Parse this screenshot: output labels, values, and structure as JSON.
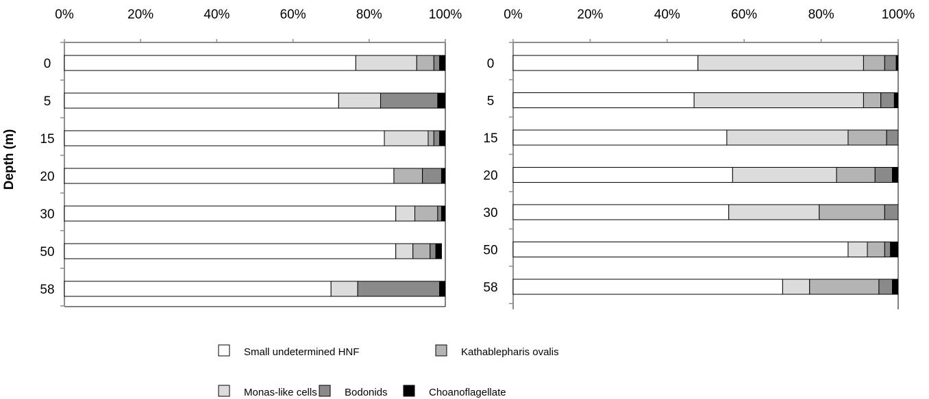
{
  "legend": [
    {
      "name": "Small undetermined HNF",
      "color": "#ffffff"
    },
    {
      "name": "Kathablepharis ovalis",
      "color": "#b4b4b4"
    },
    {
      "name": "Monas-like cells",
      "color": "#dcdcdc"
    },
    {
      "name": "Bodonids",
      "color": "#8a8a8a"
    },
    {
      "name": "Choanoflagellate",
      "color": "#000000"
    }
  ],
  "chart_data": [
    {
      "type": "bar",
      "orientation": "horizontal",
      "stacked": "percent",
      "ylabel": "Depth (m)",
      "xlim": [
        0,
        100
      ],
      "xticks": [
        "0%",
        "20%",
        "40%",
        "60%",
        "80%",
        "100%"
      ],
      "categories": [
        "0",
        "5",
        "15",
        "20",
        "30",
        "50",
        "58"
      ],
      "series": [
        {
          "name": "Small undetermined HNF",
          "color": "#ffffff",
          "values": [
            76.5,
            72,
            84,
            86.5,
            87,
            87,
            70
          ]
        },
        {
          "name": "Monas-like cells",
          "color": "#dcdcdc",
          "values": [
            16,
            11,
            11.5,
            0,
            5,
            4.5,
            7
          ]
        },
        {
          "name": "Kathablepharis ovalis",
          "color": "#b4b4b4",
          "values": [
            4.5,
            0,
            1.5,
            7.5,
            6,
            4.5,
            0
          ]
        },
        {
          "name": "Bodonids",
          "color": "#8a8a8a",
          "values": [
            1.5,
            15,
            1.5,
            5,
            1,
            1.5,
            21.5
          ]
        },
        {
          "name": "Choanoflagellate",
          "color": "#000000",
          "values": [
            1.5,
            2,
            1.5,
            1,
            1,
            1.5,
            1.5
          ]
        }
      ]
    },
    {
      "type": "bar",
      "orientation": "horizontal",
      "stacked": "percent",
      "xlim": [
        0,
        100
      ],
      "xticks": [
        "0%",
        "20%",
        "40%",
        "60%",
        "80%",
        "100%"
      ],
      "categories": [
        "0",
        "5",
        "15",
        "20",
        "30",
        "50",
        "58"
      ],
      "series": [
        {
          "name": "Small undetermined HNF",
          "color": "#ffffff",
          "values": [
            48,
            47,
            55.5,
            57,
            56,
            87,
            70
          ]
        },
        {
          "name": "Monas-like cells",
          "color": "#dcdcdc",
          "values": [
            43,
            44,
            31.5,
            27,
            23.5,
            5,
            7
          ]
        },
        {
          "name": "Kathablepharis ovalis",
          "color": "#b4b4b4",
          "values": [
            5.5,
            4.5,
            10,
            10,
            17,
            4.5,
            18
          ]
        },
        {
          "name": "Bodonids",
          "color": "#8a8a8a",
          "values": [
            3,
            3.5,
            3,
            4.5,
            3.5,
            1.5,
            3.5
          ]
        },
        {
          "name": "Choanoflagellate",
          "color": "#000000",
          "values": [
            0.5,
            1,
            0,
            1.5,
            0,
            2,
            1.5
          ]
        }
      ]
    }
  ]
}
